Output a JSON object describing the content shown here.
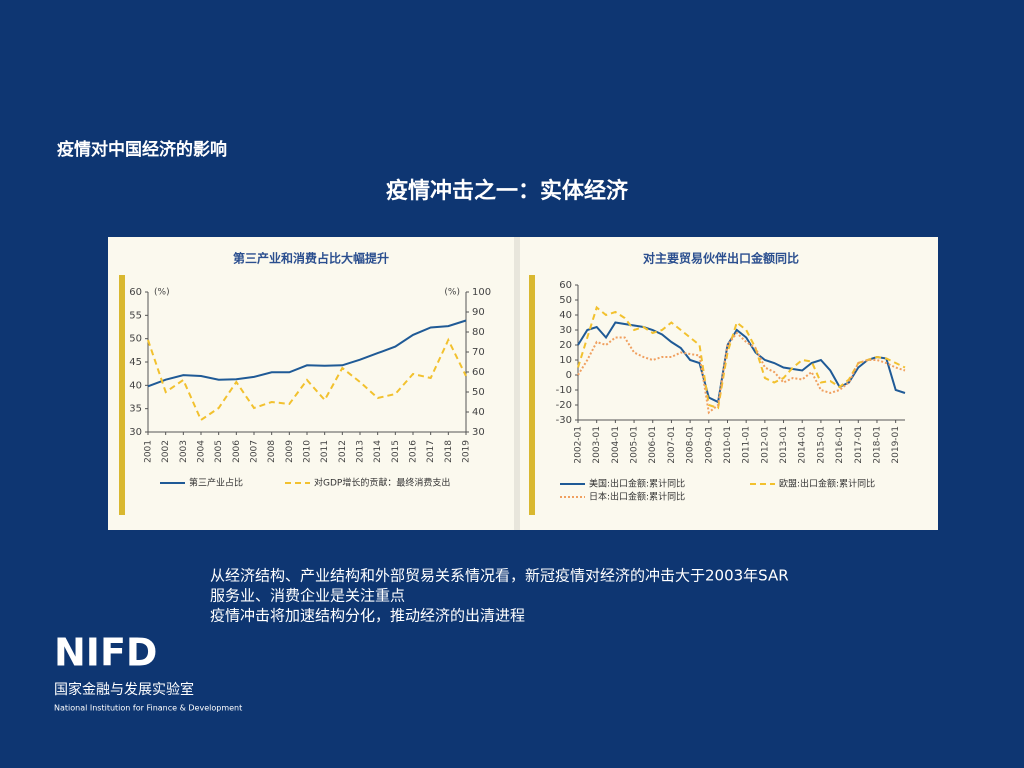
{
  "section_title": "疫情对中国经济的影响",
  "heading": "疫情冲击之一：实体经济",
  "body": [
    "从经济结构、产业结构和外部贸易关系情况看，新冠疫情对经济的冲击大于2003年SAR",
    "服务业、消费企业是关注重点",
    "疫情冲击将加速结构分化，推动经济的出清进程"
  ],
  "logo": {
    "mark": "NIFD",
    "name_cn": "国家金融与发展实验室",
    "name_en": "National Institution for Finance & Development"
  },
  "chart_data": [
    {
      "type": "line",
      "title": "第三产业和消费占比大幅提升",
      "ylabel": "(%)",
      "y2label": "(%)",
      "categories": [
        "2001",
        "2002",
        "2003",
        "2004",
        "2005",
        "2006",
        "2007",
        "2008",
        "2009",
        "2010",
        "2011",
        "2012",
        "2013",
        "2014",
        "2015",
        "2016",
        "2017",
        "2018",
        "2019"
      ],
      "series": [
        {
          "name": "第三产业占比",
          "color": "#1f5a96",
          "dash": "solid",
          "values": [
            39.8,
            41.2,
            42.2,
            42.0,
            41.2,
            41.3,
            41.8,
            42.8,
            42.8,
            44.3,
            44.2,
            44.3,
            45.5,
            46.9,
            48.3,
            50.8,
            52.4,
            52.7,
            53.9
          ]
        },
        {
          "name": "对GDP增长的贡献：最终消费支出",
          "color": "#f2c12e",
          "dash": "dashed",
          "axis": "y2",
          "values": [
            76,
            50,
            56,
            36,
            42,
            55,
            42,
            45,
            44,
            56,
            46,
            62,
            55,
            47,
            49,
            59,
            57,
            76,
            58
          ]
        }
      ],
      "ylim": [
        30,
        60
      ],
      "yticks": [
        30,
        35,
        40,
        45,
        50,
        55,
        60
      ],
      "y2lim": [
        30,
        100
      ],
      "y2ticks": [
        30,
        40,
        50,
        60,
        70,
        80,
        90,
        100
      ]
    },
    {
      "type": "line",
      "title": "对主要贸易伙伴出口金额同比",
      "categories": [
        "2002-01",
        null,
        "2003-01",
        null,
        "2004-01",
        null,
        "2005-01",
        null,
        "2006-01",
        null,
        "2007-01",
        null,
        "2008-01",
        null,
        "2009-01",
        null,
        "2010-01",
        null,
        "2011-01",
        null,
        "2012-01",
        null,
        "2013-01",
        null,
        "2014-01",
        null,
        "2015-01",
        null,
        "2016-01",
        null,
        "2017-01",
        null,
        "2018-01",
        null,
        "2019-01",
        null
      ],
      "series": [
        {
          "name": "美国:出口金额:累计同比",
          "color": "#1f5a96",
          "dash": "solid",
          "values": [
            20,
            30,
            32,
            25,
            35,
            34,
            33,
            32,
            30,
            27,
            22,
            18,
            10,
            8,
            -15,
            -18,
            20,
            30,
            25,
            15,
            10,
            8,
            5,
            4,
            3,
            8,
            10,
            3,
            -8,
            -5,
            5,
            10,
            12,
            11,
            -10,
            -12
          ]
        },
        {
          "name": "欧盟:出口金额:累计同比",
          "color": "#f2c12e",
          "dash": "dashed",
          "values": [
            5,
            25,
            45,
            40,
            42,
            38,
            30,
            32,
            28,
            30,
            35,
            30,
            25,
            20,
            -20,
            -22,
            15,
            35,
            30,
            18,
            -2,
            -5,
            -2,
            5,
            10,
            9,
            -5,
            -4,
            -8,
            -3,
            8,
            10,
            12,
            11,
            8,
            5
          ]
        },
        {
          "name": "日本:出口金额:累计同比",
          "color": "#f0a060",
          "dash": "dotted",
          "values": [
            0,
            10,
            22,
            20,
            25,
            25,
            15,
            12,
            10,
            12,
            12,
            15,
            14,
            13,
            -25,
            -20,
            20,
            28,
            22,
            18,
            5,
            2,
            -5,
            -2,
            -3,
            2,
            -10,
            -12,
            -10,
            -5,
            8,
            10,
            10,
            8,
            5,
            3
          ]
        }
      ],
      "ylim": [
        -30,
        60
      ],
      "yticks": [
        -30,
        -20,
        -10,
        0,
        10,
        20,
        30,
        40,
        50,
        60
      ]
    }
  ]
}
